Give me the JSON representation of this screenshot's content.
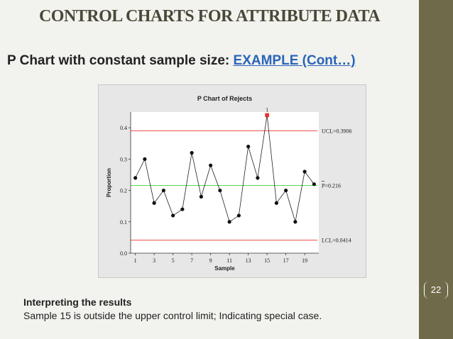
{
  "slide": {
    "title": "CONTROL CHARTS FOR ATTRIBUTE DATA",
    "subtitle": "P Chart with constant sample size: ",
    "subtitle_link": "EXAMPLE (Cont…)",
    "interpretation_title": "Interpreting the results",
    "interpretation_text": "Sample 15 is outside the upper control limit; Indicating special case.",
    "page_number": "22"
  },
  "colors": {
    "sidebar": "#6f6b4a",
    "title": "#4a4838",
    "link": "#2b64b8",
    "ucl_lcl": "#e8302a",
    "center": "#3ad13a",
    "out_of_control": "#e8302a"
  },
  "chart_data": {
    "type": "line",
    "title": "P Chart of Rejects",
    "xlabel": "Sample",
    "ylabel": "Proportion",
    "x": [
      1,
      2,
      3,
      4,
      5,
      6,
      7,
      8,
      9,
      10,
      11,
      12,
      13,
      14,
      15,
      16,
      17,
      18,
      19,
      20
    ],
    "values": [
      0.24,
      0.3,
      0.16,
      0.2,
      0.12,
      0.14,
      0.32,
      0.18,
      0.28,
      0.2,
      0.1,
      0.12,
      0.34,
      0.24,
      0.44,
      0.16,
      0.2,
      0.1,
      0.26,
      0.22
    ],
    "x_ticks": [
      1,
      3,
      5,
      7,
      9,
      11,
      13,
      15,
      17,
      19
    ],
    "y_ticks": [
      0.0,
      0.1,
      0.2,
      0.3,
      0.4
    ],
    "y_tick_labels": [
      "0.0",
      "0.1",
      "0.2",
      "0.3",
      "0.4"
    ],
    "xlim": [
      0.5,
      20.5
    ],
    "ylim": [
      0.0,
      0.45
    ],
    "ucl": 0.3906,
    "center": 0.216,
    "lcl": 0.0414,
    "ucl_label": "UCL=0.3906",
    "center_label": "P=0.216",
    "lcl_label": "LCL=0.0414",
    "out_of_control": [
      {
        "x": 15,
        "flag": "1"
      }
    ],
    "grid": false
  }
}
